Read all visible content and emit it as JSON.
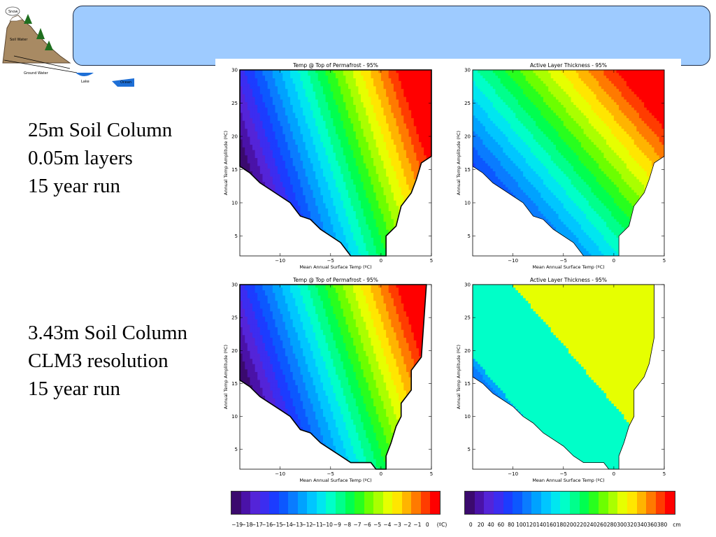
{
  "captions": {
    "top": [
      "25m Soil Column",
      "0.05m layers",
      "15 year run"
    ],
    "bottom": [
      "3.43m Soil Column",
      "CLM3 resolution",
      "15 year run"
    ]
  },
  "logo_labels": {
    "snow": "Snow",
    "soil_water": "Soil Water",
    "ground_water": "Ground Water",
    "lake": "Lake",
    "ocean": "Ocean"
  },
  "colors": {
    "banner": "#9ecbff",
    "banner_border": "#1d2c47"
  },
  "chart_data": [
    {
      "id": "tl",
      "type": "heatmap",
      "title": "Temp @ Top of Permafrost - 95%",
      "xlabel": "Mean Annual Surface Temp (ºC)",
      "ylabel": "Annual Temp Amplitude (ºC)",
      "xlim": [
        -14,
        5
      ],
      "ylim": [
        2,
        30
      ],
      "xticks": [
        -10,
        -5,
        0,
        5
      ],
      "yticks": [
        5,
        10,
        15,
        20,
        25,
        30
      ],
      "variable": "temp",
      "boundary": [
        [
          -14,
          15.5
        ],
        [
          -13,
          14.5
        ],
        [
          -12,
          13
        ],
        [
          -11,
          12
        ],
        [
          -10,
          11
        ],
        [
          -9,
          10
        ],
        [
          -8,
          8
        ],
        [
          -7,
          7.5
        ],
        [
          -6,
          6
        ],
        [
          -5,
          5
        ],
        [
          -4,
          4
        ],
        [
          -3,
          2
        ],
        [
          -2,
          2
        ],
        [
          -1,
          2
        ],
        [
          0,
          2
        ],
        [
          0.5,
          2
        ],
        [
          0.5,
          5
        ],
        [
          1.5,
          6.5
        ],
        [
          2,
          9.5
        ],
        [
          3,
          11.5
        ],
        [
          3.5,
          13.5
        ],
        [
          4,
          16
        ],
        [
          5,
          17
        ],
        [
          5,
          30
        ],
        [
          -14,
          30
        ]
      ]
    },
    {
      "id": "tr",
      "type": "heatmap",
      "title": "Active Layer Thickness - 95%",
      "xlabel": "Mean Annual Surface Temp (ºC)",
      "ylabel": "Annual Temp Amplitude (ºC)",
      "xlim": [
        -14,
        5
      ],
      "ylim": [
        2,
        30
      ],
      "xticks": [
        -10,
        -5,
        0,
        5
      ],
      "yticks": [
        5,
        10,
        15,
        20,
        25,
        30
      ],
      "variable": "alt",
      "boundary": [
        [
          -14,
          15.5
        ],
        [
          -13,
          14.5
        ],
        [
          -12,
          13
        ],
        [
          -11,
          12
        ],
        [
          -10,
          11
        ],
        [
          -9,
          10
        ],
        [
          -8,
          8
        ],
        [
          -7,
          7.5
        ],
        [
          -6,
          6
        ],
        [
          -5,
          5
        ],
        [
          -4,
          4
        ],
        [
          -3,
          2
        ],
        [
          -2,
          2
        ],
        [
          -1,
          2
        ],
        [
          0,
          2
        ],
        [
          0.5,
          2
        ],
        [
          0.5,
          5
        ],
        [
          1.5,
          6.5
        ],
        [
          2,
          9.5
        ],
        [
          3,
          11.5
        ],
        [
          3.5,
          13.5
        ],
        [
          4,
          16
        ],
        [
          5,
          17
        ],
        [
          5,
          30
        ],
        [
          -14,
          30
        ]
      ]
    },
    {
      "id": "bl",
      "type": "heatmap",
      "title": "Temp @ Top of Permafrost - 95%",
      "xlabel": "Mean Annual Surface Temp (ºC)",
      "ylabel": "Annual Temp Amplitude (ºC)",
      "xlim": [
        -14,
        5
      ],
      "ylim": [
        2,
        30
      ],
      "xticks": [
        -10,
        -5,
        0,
        5
      ],
      "yticks": [
        5,
        10,
        15,
        20,
        25,
        30
      ],
      "variable": "temp",
      "boundary": [
        [
          -14,
          15.5
        ],
        [
          -13,
          14.5
        ],
        [
          -12,
          13
        ],
        [
          -11,
          12
        ],
        [
          -10,
          11
        ],
        [
          -9,
          10
        ],
        [
          -8,
          8
        ],
        [
          -7,
          7.5
        ],
        [
          -6,
          6
        ],
        [
          -5,
          5
        ],
        [
          -4,
          4
        ],
        [
          -3,
          3
        ],
        [
          -1,
          3
        ],
        [
          -0.5,
          2
        ],
        [
          0.5,
          2
        ],
        [
          0.5,
          4
        ],
        [
          1,
          6
        ],
        [
          1.5,
          8.5
        ],
        [
          2,
          10
        ],
        [
          2,
          12
        ],
        [
          3,
          14
        ],
        [
          3,
          17
        ],
        [
          4,
          19
        ],
        [
          4.5,
          30
        ],
        [
          -14,
          30
        ]
      ]
    },
    {
      "id": "br",
      "type": "heatmap",
      "title": "Active Layer Thickness - 95%",
      "xlabel": "Mean Annual Surface Temp (ºC)",
      "ylabel": "Annual Temp Amplitude (ºC)",
      "xlim": [
        -14,
        5
      ],
      "ylim": [
        2,
        30
      ],
      "xticks": [
        -10,
        -5,
        0,
        5
      ],
      "yticks": [
        5,
        10,
        15,
        20,
        25,
        30
      ],
      "variable": "alt_clm",
      "boundary": [
        [
          -14,
          16
        ],
        [
          -13,
          15
        ],
        [
          -12,
          13.5
        ],
        [
          -11,
          12.5
        ],
        [
          -10,
          11.5
        ],
        [
          -9,
          10
        ],
        [
          -8,
          9
        ],
        [
          -7,
          7.5
        ],
        [
          -6,
          6.5
        ],
        [
          -5,
          5.5
        ],
        [
          -4,
          4
        ],
        [
          -3,
          3
        ],
        [
          -1,
          3
        ],
        [
          -0.5,
          2
        ],
        [
          0.5,
          2
        ],
        [
          0.5,
          4
        ],
        [
          1,
          6
        ],
        [
          1.5,
          8.5
        ],
        [
          2,
          10
        ],
        [
          2,
          14
        ],
        [
          3,
          16
        ],
        [
          3.5,
          18
        ],
        [
          4,
          22
        ],
        [
          4,
          30
        ],
        [
          -14,
          30
        ]
      ]
    }
  ],
  "colorbars": {
    "temp": {
      "unit": "(ºC)",
      "labels": [
        "−19",
        "−18",
        "−17",
        "−16",
        "−15",
        "−14",
        "−13",
        "−12",
        "−11",
        "−10",
        "−9",
        "−8",
        "−7",
        "−6",
        "−5",
        "−4",
        "−3",
        "−2",
        "−1",
        "0"
      ],
      "colors": [
        "#3b0a6e",
        "#4a12a8",
        "#5424d8",
        "#3c2df0",
        "#1c3cff",
        "#0c58ff",
        "#0a7cff",
        "#00a2ff",
        "#00c6ff",
        "#00e6f0",
        "#00ffc8",
        "#00ff8c",
        "#00ff50",
        "#28ff1e",
        "#6cff00",
        "#aaff00",
        "#e6ff00",
        "#ffe600",
        "#ffb400",
        "#ff7a00",
        "#ff3c00",
        "#ff0000"
      ]
    },
    "alt": {
      "unit": "cm",
      "labels": [
        "0",
        "20",
        "40",
        "60",
        "80",
        "100",
        "120",
        "140",
        "160",
        "180",
        "200",
        "220",
        "240",
        "260",
        "280",
        "300",
        "320",
        "340",
        "360",
        "380"
      ],
      "colors": [
        "#3b0a6e",
        "#4a12a8",
        "#5424d8",
        "#3c2df0",
        "#1c3cff",
        "#0c58ff",
        "#0a7cff",
        "#00a2ff",
        "#00c6ff",
        "#00e6f0",
        "#00ffc8",
        "#00ff8c",
        "#00ff50",
        "#28ff1e",
        "#6cff00",
        "#aaff00",
        "#e6ff00",
        "#ffe600",
        "#ffb400",
        "#ff7a00",
        "#ff3c00",
        "#ff0000"
      ]
    }
  }
}
